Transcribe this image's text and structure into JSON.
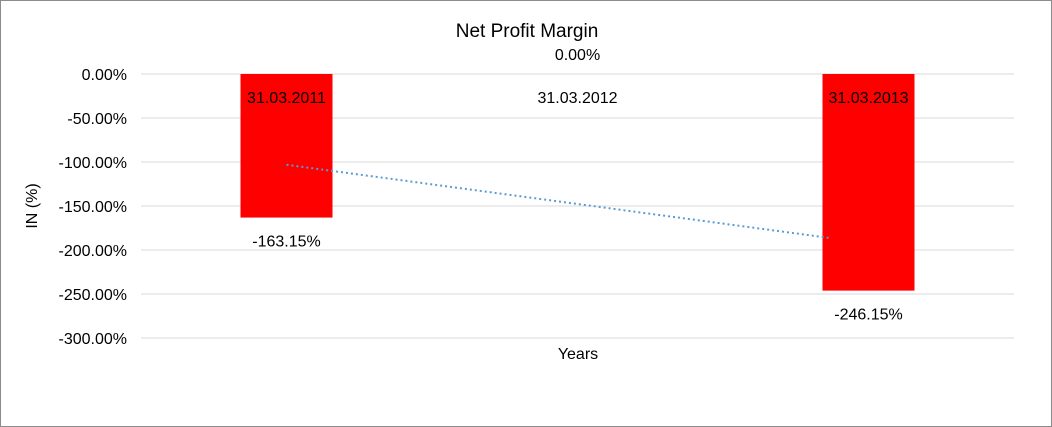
{
  "chart_data": {
    "type": "bar",
    "title": "Net Profit Margin",
    "xlabel": "Years",
    "ylabel": "IN (%)",
    "categories": [
      "31.03.2011",
      "31.03.2012",
      "31.03.2013"
    ],
    "values": [
      -163.15,
      0.0,
      -246.15
    ],
    "data_labels": [
      "-163.15%",
      "0.00%",
      "-246.15%"
    ],
    "ylim": [
      -300,
      0
    ],
    "yticks": [
      0,
      -50,
      -100,
      -150,
      -200,
      -250,
      -300
    ],
    "ytick_labels": [
      "0.00%",
      "-50.00%",
      "-100.00%",
      "-150.00%",
      "-200.00%",
      "-250.00%",
      "-300.00%"
    ],
    "grid": true,
    "trendline": {
      "type": "linear",
      "style": "dotted"
    },
    "colors": {
      "bar": "#ff0000",
      "trendline": "#5b9bd5",
      "grid": "#d9d9d9"
    }
  }
}
